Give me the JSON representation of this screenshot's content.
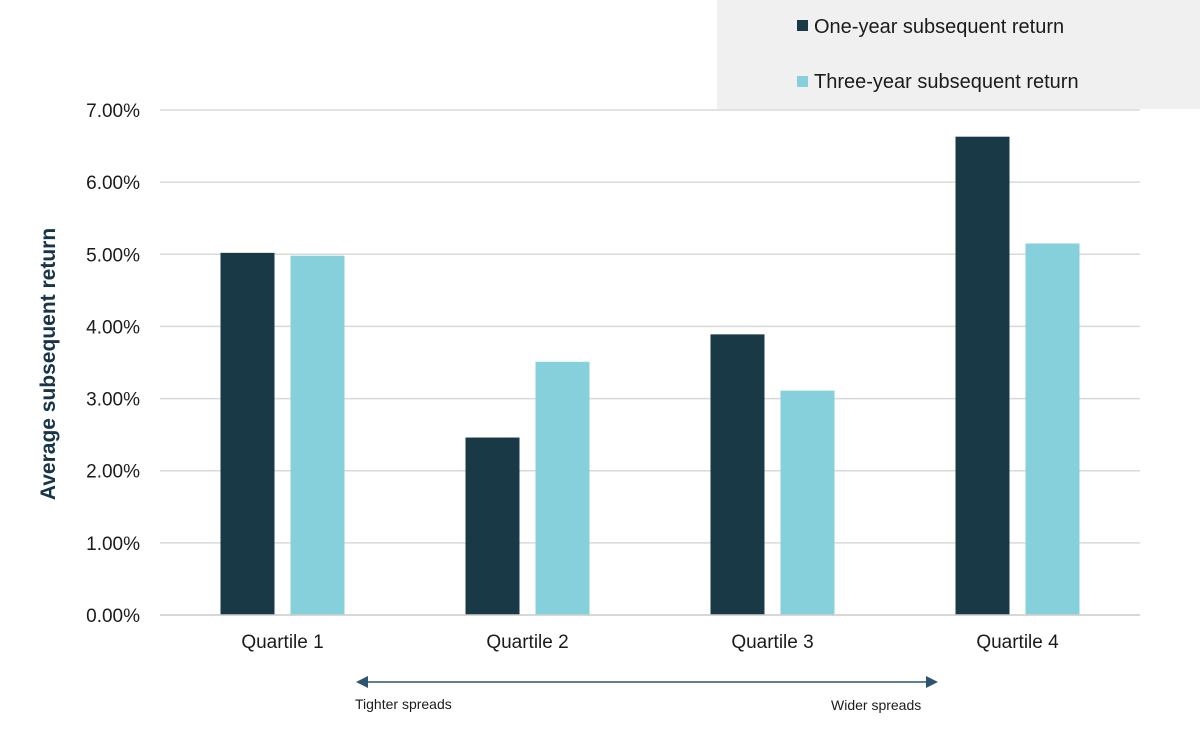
{
  "chart_data": {
    "type": "bar",
    "title": "",
    "xlabel": "",
    "ylabel": "Average subsequent return",
    "ylim": [
      0,
      7
    ],
    "yticks": [
      "0.00%",
      "1.00%",
      "2.00%",
      "3.00%",
      "4.00%",
      "5.00%",
      "6.00%",
      "7.00%"
    ],
    "grid": true,
    "legend_position": "top-right",
    "categories": [
      "Quartile 1",
      "Quartile 2",
      "Quartile 3",
      "Quartile 4"
    ],
    "series": [
      {
        "name": "One-year subsequent return",
        "color": "#193947",
        "values": [
          5.02,
          2.46,
          3.89,
          6.63
        ]
      },
      {
        "name": "Three-year subsequent return",
        "color": "#86d0dc",
        "values": [
          4.98,
          3.51,
          3.11,
          5.15
        ]
      }
    ],
    "annotations": {
      "left": "Tighter spreads",
      "right": "Wider spreads",
      "arrow_color": "#2e5570"
    }
  }
}
